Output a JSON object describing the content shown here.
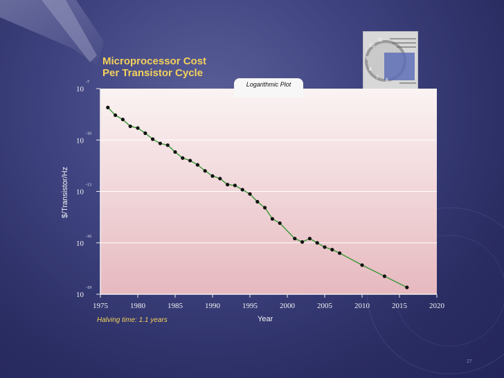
{
  "slide": {
    "title": "Microprocessor Cost\nPer Transistor Cycle",
    "annotation": "Logarithmic Plot",
    "note": "Halving time: 1.1 years",
    "page_number": "27",
    "colors": {
      "title": "#f3d15c",
      "line": "#3f9a3a",
      "marker": "#111111",
      "plot_top": "#fbf3f3",
      "plot_bottom": "#e6b9bf"
    }
  },
  "chart_data": {
    "type": "line",
    "title": "",
    "xlabel": "Year",
    "ylabel": "$/Transistor/Hz",
    "xlim": [
      1975,
      2020
    ],
    "ylim": [
      -19,
      -7
    ],
    "y_scale": "log10",
    "xticks": [
      "1975",
      "1980",
      "1985",
      "1990",
      "1995",
      "2000",
      "2005",
      "2010",
      "2015",
      "2020"
    ],
    "yticks": [
      {
        "value": -7,
        "base": "10",
        "exp": "-7"
      },
      {
        "value": -10,
        "base": "10",
        "exp": "-10"
      },
      {
        "value": -13,
        "base": "10",
        "exp": "-13"
      },
      {
        "value": -16,
        "base": "10",
        "exp": "-16"
      },
      {
        "value": -19,
        "base": "10",
        "exp": "-19"
      }
    ],
    "grid": true,
    "legend": "none",
    "series": [
      {
        "x": [
          1976,
          1977,
          1978,
          1979,
          1980,
          1981,
          1982,
          1983,
          1984,
          1985,
          1986,
          1987,
          1988,
          1989,
          1990,
          1991,
          1992,
          1993,
          1994,
          1995,
          1996,
          1997,
          1998,
          1999,
          2001,
          2002,
          2003,
          2004,
          2005,
          2006,
          2007,
          2010,
          2013,
          2016
        ],
        "y": [
          -8.1,
          -8.55,
          -8.8,
          -9.2,
          -9.3,
          -9.6,
          -9.95,
          -10.2,
          -10.3,
          -10.7,
          -11.05,
          -11.2,
          -11.45,
          -11.8,
          -12.1,
          -12.25,
          -12.6,
          -12.65,
          -12.9,
          -13.15,
          -13.6,
          -13.95,
          -14.6,
          -14.85,
          -15.75,
          -15.95,
          -15.75,
          -16.0,
          -16.25,
          -16.4,
          -16.6,
          -17.3,
          -17.95,
          -18.6
        ]
      }
    ]
  }
}
